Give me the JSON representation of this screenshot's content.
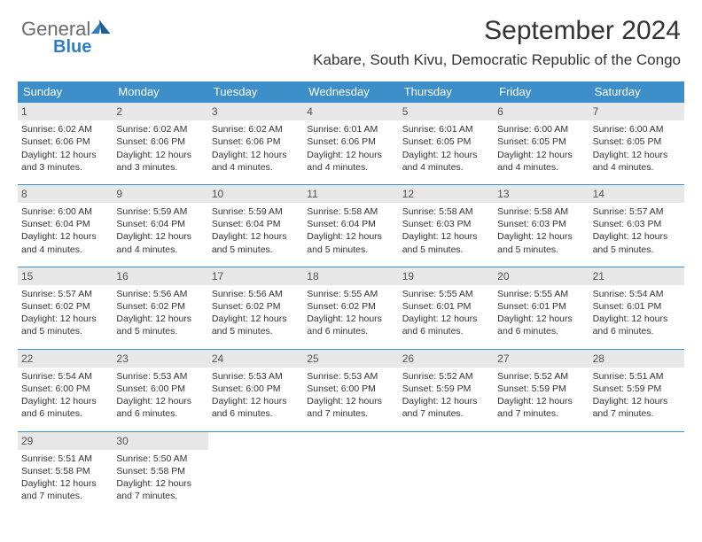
{
  "logo": {
    "text1": "General",
    "text2": "Blue"
  },
  "title": "September 2024",
  "subtitle": "Kabare, South Kivu, Democratic Republic of the Congo",
  "colors": {
    "header_bg": "#3d8fc9",
    "header_text": "#ffffff",
    "daynum_bg": "#e8e8e8",
    "border": "#3d8fc9",
    "logo_gray": "#6b6b6b",
    "logo_blue": "#2f80c3"
  },
  "day_names": [
    "Sunday",
    "Monday",
    "Tuesday",
    "Wednesday",
    "Thursday",
    "Friday",
    "Saturday"
  ],
  "weeks": [
    [
      {
        "day": "1",
        "sunrise": "6:02 AM",
        "sunset": "6:06 PM",
        "daylight": "12 hours and 3 minutes."
      },
      {
        "day": "2",
        "sunrise": "6:02 AM",
        "sunset": "6:06 PM",
        "daylight": "12 hours and 3 minutes."
      },
      {
        "day": "3",
        "sunrise": "6:02 AM",
        "sunset": "6:06 PM",
        "daylight": "12 hours and 4 minutes."
      },
      {
        "day": "4",
        "sunrise": "6:01 AM",
        "sunset": "6:06 PM",
        "daylight": "12 hours and 4 minutes."
      },
      {
        "day": "5",
        "sunrise": "6:01 AM",
        "sunset": "6:05 PM",
        "daylight": "12 hours and 4 minutes."
      },
      {
        "day": "6",
        "sunrise": "6:00 AM",
        "sunset": "6:05 PM",
        "daylight": "12 hours and 4 minutes."
      },
      {
        "day": "7",
        "sunrise": "6:00 AM",
        "sunset": "6:05 PM",
        "daylight": "12 hours and 4 minutes."
      }
    ],
    [
      {
        "day": "8",
        "sunrise": "6:00 AM",
        "sunset": "6:04 PM",
        "daylight": "12 hours and 4 minutes."
      },
      {
        "day": "9",
        "sunrise": "5:59 AM",
        "sunset": "6:04 PM",
        "daylight": "12 hours and 4 minutes."
      },
      {
        "day": "10",
        "sunrise": "5:59 AM",
        "sunset": "6:04 PM",
        "daylight": "12 hours and 5 minutes."
      },
      {
        "day": "11",
        "sunrise": "5:58 AM",
        "sunset": "6:04 PM",
        "daylight": "12 hours and 5 minutes."
      },
      {
        "day": "12",
        "sunrise": "5:58 AM",
        "sunset": "6:03 PM",
        "daylight": "12 hours and 5 minutes."
      },
      {
        "day": "13",
        "sunrise": "5:58 AM",
        "sunset": "6:03 PM",
        "daylight": "12 hours and 5 minutes."
      },
      {
        "day": "14",
        "sunrise": "5:57 AM",
        "sunset": "6:03 PM",
        "daylight": "12 hours and 5 minutes."
      }
    ],
    [
      {
        "day": "15",
        "sunrise": "5:57 AM",
        "sunset": "6:02 PM",
        "daylight": "12 hours and 5 minutes."
      },
      {
        "day": "16",
        "sunrise": "5:56 AM",
        "sunset": "6:02 PM",
        "daylight": "12 hours and 5 minutes."
      },
      {
        "day": "17",
        "sunrise": "5:56 AM",
        "sunset": "6:02 PM",
        "daylight": "12 hours and 5 minutes."
      },
      {
        "day": "18",
        "sunrise": "5:55 AM",
        "sunset": "6:02 PM",
        "daylight": "12 hours and 6 minutes."
      },
      {
        "day": "19",
        "sunrise": "5:55 AM",
        "sunset": "6:01 PM",
        "daylight": "12 hours and 6 minutes."
      },
      {
        "day": "20",
        "sunrise": "5:55 AM",
        "sunset": "6:01 PM",
        "daylight": "12 hours and 6 minutes."
      },
      {
        "day": "21",
        "sunrise": "5:54 AM",
        "sunset": "6:01 PM",
        "daylight": "12 hours and 6 minutes."
      }
    ],
    [
      {
        "day": "22",
        "sunrise": "5:54 AM",
        "sunset": "6:00 PM",
        "daylight": "12 hours and 6 minutes."
      },
      {
        "day": "23",
        "sunrise": "5:53 AM",
        "sunset": "6:00 PM",
        "daylight": "12 hours and 6 minutes."
      },
      {
        "day": "24",
        "sunrise": "5:53 AM",
        "sunset": "6:00 PM",
        "daylight": "12 hours and 6 minutes."
      },
      {
        "day": "25",
        "sunrise": "5:53 AM",
        "sunset": "6:00 PM",
        "daylight": "12 hours and 7 minutes."
      },
      {
        "day": "26",
        "sunrise": "5:52 AM",
        "sunset": "5:59 PM",
        "daylight": "12 hours and 7 minutes."
      },
      {
        "day": "27",
        "sunrise": "5:52 AM",
        "sunset": "5:59 PM",
        "daylight": "12 hours and 7 minutes."
      },
      {
        "day": "28",
        "sunrise": "5:51 AM",
        "sunset": "5:59 PM",
        "daylight": "12 hours and 7 minutes."
      }
    ],
    [
      {
        "day": "29",
        "sunrise": "5:51 AM",
        "sunset": "5:58 PM",
        "daylight": "12 hours and 7 minutes."
      },
      {
        "day": "30",
        "sunrise": "5:50 AM",
        "sunset": "5:58 PM",
        "daylight": "12 hours and 7 minutes."
      },
      null,
      null,
      null,
      null,
      null
    ]
  ],
  "labels": {
    "sunrise": "Sunrise: ",
    "sunset": "Sunset: ",
    "daylight": "Daylight: "
  }
}
